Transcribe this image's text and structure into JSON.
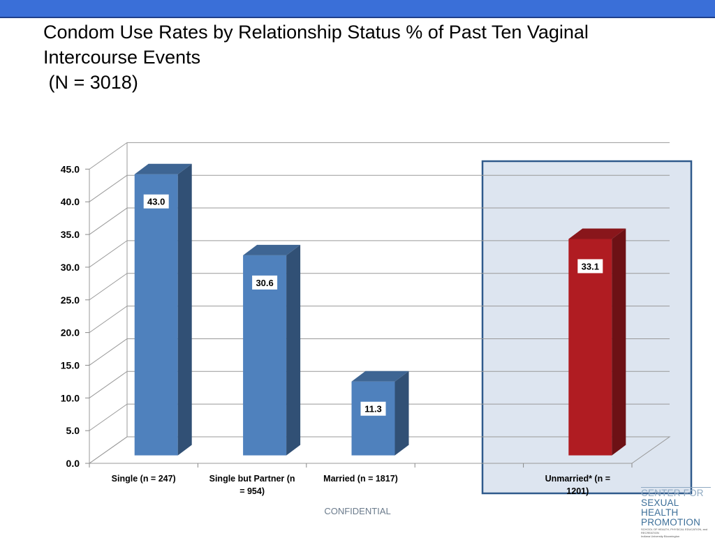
{
  "header": {
    "title_line1": "Condom Use Rates by Relationship Status % of Past Ten Vaginal",
    "title_line2": "Intercourse Events",
    "title_line3": " (N = 3018)"
  },
  "footer": {
    "confidential": "CONFIDENTIAL"
  },
  "logo": {
    "line1": "CENTER FOR",
    "line2": "SEXUAL HEALTH",
    "line3": "PROMOTION",
    "small1": "SCHOOL OF HEALTH, PHYSICAL EDUCATION, and RECREATION",
    "small2": "Indiana University Bloomington"
  },
  "colors": {
    "blue_bar": "#4f81bd",
    "red_bar": "#b01c22",
    "highlight_fill": "#dde5f0",
    "highlight_border": "#2f5a8c",
    "top_bar": "#3a6fd8"
  },
  "chart_data": {
    "type": "bar",
    "categories": [
      "Single (n = 247)",
      "Single but Partner (n = 954)",
      "Married (n = 1817)",
      "",
      "Unmarried* (n = 1201)"
    ],
    "category_label_lines": [
      [
        "Single (n = 247)"
      ],
      [
        "Single but Partner (n",
        "= 954)"
      ],
      [
        "Married (n = 1817)"
      ],
      [],
      [
        "Unmarried* (n =",
        "1201)"
      ]
    ],
    "values": [
      43.0,
      30.6,
      11.3,
      null,
      33.1
    ],
    "data_labels": [
      "43.0",
      "30.6",
      "11.3",
      "",
      "33.1"
    ],
    "bar_colors": [
      "blue",
      "blue",
      "blue",
      null,
      "red"
    ],
    "highlighted_category_index": 4,
    "ylim": [
      0,
      45
    ],
    "yticks": [
      "0.0",
      "5.0",
      "10.0",
      "15.0",
      "20.0",
      "25.0",
      "30.0",
      "35.0",
      "40.0",
      "45.0"
    ],
    "grid": true,
    "three_d": true
  }
}
